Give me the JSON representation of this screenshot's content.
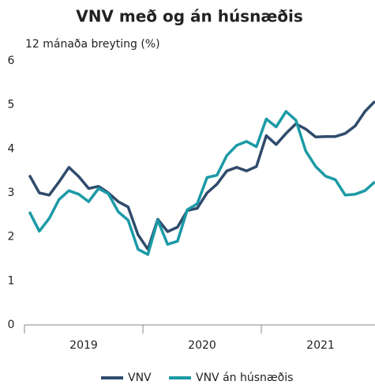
{
  "chart_data": {
    "type": "line",
    "title": "VNV með og án húsnæðis",
    "subtitle": "12 mánaða breyting (%)",
    "categories": [
      null,
      null,
      null,
      null,
      null,
      null,
      null,
      null,
      null,
      null,
      null,
      null,
      null,
      null,
      null,
      null,
      null,
      null,
      null,
      null,
      null,
      null,
      null,
      null,
      null,
      null,
      null,
      null,
      null,
      null,
      null,
      null,
      null,
      null,
      null,
      null
    ],
    "x_groups": [
      "2019",
      "2020",
      "2021"
    ],
    "series": [
      {
        "name": "VNV",
        "color": "#2f4b6c",
        "values": [
          3.4,
          3.0,
          2.95,
          3.25,
          3.58,
          3.37,
          3.1,
          3.15,
          3.0,
          2.8,
          2.68,
          2.05,
          1.72,
          2.4,
          2.12,
          2.22,
          2.6,
          2.65,
          3.0,
          3.2,
          3.5,
          3.58,
          3.5,
          3.6,
          4.3,
          4.1,
          4.35,
          4.57,
          4.45,
          4.27,
          4.28,
          4.28,
          4.35,
          4.52,
          4.85,
          5.08
        ]
      },
      {
        "name": "VNV án húsnæðis",
        "color": "#1b9aa6",
        "values": [
          2.57,
          2.13,
          2.42,
          2.85,
          3.05,
          2.97,
          2.8,
          3.1,
          2.98,
          2.57,
          2.38,
          1.72,
          1.6,
          2.38,
          1.83,
          1.9,
          2.62,
          2.75,
          3.35,
          3.4,
          3.85,
          4.08,
          4.17,
          4.05,
          4.68,
          4.5,
          4.85,
          4.65,
          3.95,
          3.6,
          3.38,
          3.3,
          2.95,
          2.97,
          3.05,
          3.25
        ]
      }
    ],
    "ylim": [
      0,
      6
    ],
    "yticks": [
      0,
      1,
      2,
      3,
      4,
      5,
      6
    ],
    "grid": false,
    "legend": "bottom"
  }
}
